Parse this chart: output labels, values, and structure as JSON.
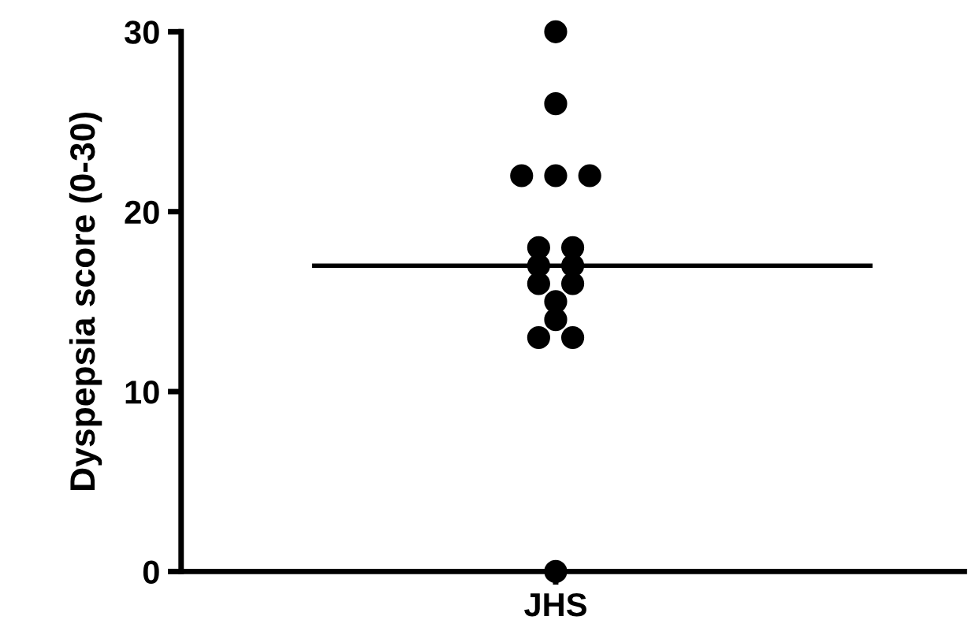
{
  "chart_data": {
    "type": "scatter",
    "ylabel": "Dyspepsia score (0-30)",
    "categories": [
      "JHS"
    ],
    "series": [
      {
        "x": [
          "JHS",
          "JHS",
          "JHS",
          "JHS",
          "JHS",
          "JHS",
          "JHS",
          "JHS",
          "JHS",
          "JHS",
          "JHS",
          "JHS",
          "JHS",
          "JHS",
          "JHS",
          "JHS"
        ],
        "color": "#000000",
        "values": [
          30,
          26,
          22,
          22,
          22,
          18,
          18,
          17,
          17,
          16,
          16,
          15,
          14,
          13,
          13,
          0
        ]
      }
    ],
    "ylim": [
      0,
      30
    ],
    "yticks": [
      0,
      10,
      20,
      30
    ],
    "ref_lines": [
      {
        "axis": "y",
        "value": 17,
        "color": "#000000"
      }
    ],
    "marker": "circle",
    "grid": false,
    "legend": false
  }
}
